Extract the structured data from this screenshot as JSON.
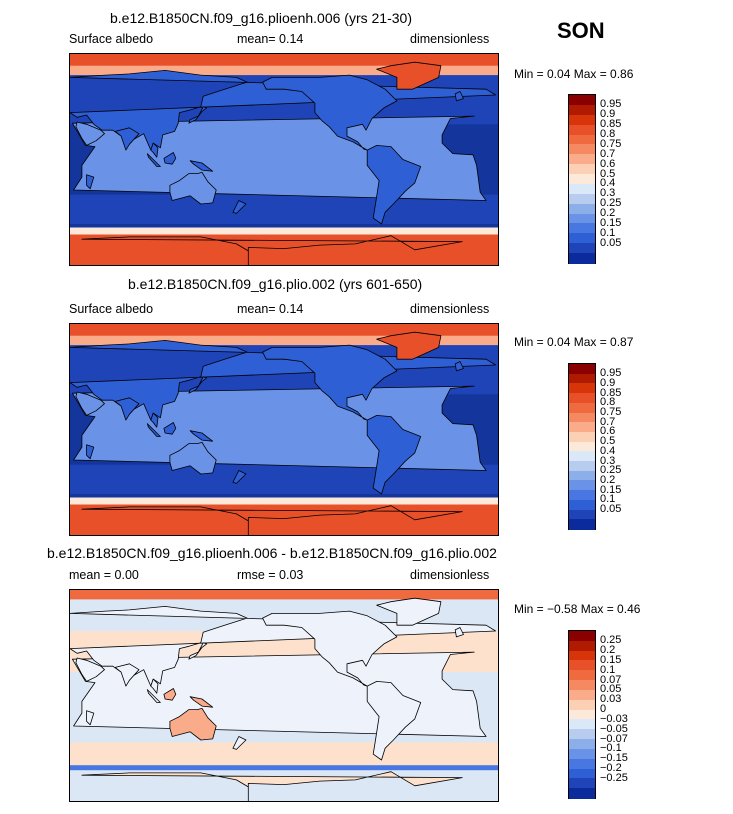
{
  "header": {
    "season": "SON"
  },
  "colors": {
    "ocean_blue": "#14359c",
    "land_blue": "#2f5fd4",
    "ice_red": "#e8502a",
    "diff_bg": "#dbe7f5",
    "diff_pos": "#fde1cc"
  },
  "panels": [
    {
      "title": "b.e12.B1850CN.f09_g16.plioenh.006 (yrs 21-30)",
      "left": "Surface albedo",
      "mean": "mean=   0.14",
      "units": "dimensionless",
      "minmax": "Min =   0.04  Max =   0.86",
      "levels": [
        "0.95",
        "0.9",
        "0.85",
        "0.8",
        "0.75",
        "0.7",
        "0.6",
        "0.5",
        "0.4",
        "0.3",
        "0.25",
        "0.2",
        "0.15",
        "0.1",
        "0.05"
      ],
      "colorbar": [
        "#8a0000",
        "#b01a00",
        "#d8340a",
        "#e8502a",
        "#f06a40",
        "#f58a62",
        "#f9ab8a",
        "#fcd0b4",
        "#fde9da",
        "#dbe8f7",
        "#b7ccef",
        "#8cafea",
        "#6a93e8",
        "#4977e2",
        "#2f5fd4",
        "#1e44b8",
        "#0b2a9b"
      ]
    },
    {
      "title": "b.e12.B1850CN.f09_g16.plio.002 (yrs 601-650)",
      "left": "Surface albedo",
      "mean": "mean=   0.14",
      "units": "dimensionless",
      "minmax": "Min =   0.04  Max =   0.87",
      "levels": [
        "0.95",
        "0.9",
        "0.85",
        "0.8",
        "0.75",
        "0.7",
        "0.6",
        "0.5",
        "0.4",
        "0.3",
        "0.25",
        "0.2",
        "0.15",
        "0.1",
        "0.05"
      ],
      "colorbar": [
        "#8a0000",
        "#b01a00",
        "#d8340a",
        "#e8502a",
        "#f06a40",
        "#f58a62",
        "#f9ab8a",
        "#fcd0b4",
        "#fde9da",
        "#dbe8f7",
        "#b7ccef",
        "#8cafea",
        "#6a93e8",
        "#4977e2",
        "#2f5fd4",
        "#1e44b8",
        "#0b2a9b"
      ]
    },
    {
      "title": "b.e12.B1850CN.f09_g16.plioenh.006 - b.e12.B1850CN.f09_g16.plio.002",
      "left": "mean =   0.00",
      "mean": "rmse =   0.03",
      "units": "dimensionless",
      "minmax": "Min =  −0.58  Max =   0.46",
      "levels": [
        "0.25",
        "0.2",
        "0.15",
        "0.1",
        "0.07",
        "0.05",
        "0.03",
        "0",
        "−0.03",
        "−0.05",
        "−0.07",
        "−0.1",
        "−0.15",
        "−0.2",
        "−0.25"
      ],
      "colorbar": [
        "#8a0000",
        "#b01a00",
        "#d8340a",
        "#e8502a",
        "#f06a40",
        "#f58a62",
        "#f9ab8a",
        "#fcd0b4",
        "#fde9da",
        "#dbe8f7",
        "#b7ccef",
        "#8cafea",
        "#6a93e8",
        "#4977e2",
        "#2f5fd4",
        "#1e44b8",
        "#0b2a9b"
      ]
    }
  ],
  "chart_data": [
    {
      "type": "heatmap",
      "title": "b.e12.B1850CN.f09_g16.plioenh.006 (yrs 21-30)",
      "variable": "Surface albedo",
      "units": "dimensionless",
      "mean": 0.14,
      "min": 0.04,
      "max": 0.86,
      "contour_levels": [
        0.05,
        0.1,
        0.15,
        0.2,
        0.25,
        0.3,
        0.4,
        0.5,
        0.6,
        0.7,
        0.75,
        0.8,
        0.85,
        0.9,
        0.95
      ]
    },
    {
      "type": "heatmap",
      "title": "b.e12.B1850CN.f09_g16.plio.002 (yrs 601-650)",
      "variable": "Surface albedo",
      "units": "dimensionless",
      "mean": 0.14,
      "min": 0.04,
      "max": 0.87,
      "contour_levels": [
        0.05,
        0.1,
        0.15,
        0.2,
        0.25,
        0.3,
        0.4,
        0.5,
        0.6,
        0.7,
        0.75,
        0.8,
        0.85,
        0.9,
        0.95
      ]
    },
    {
      "type": "heatmap",
      "title": "b.e12.B1850CN.f09_g16.plioenh.006 - b.e12.B1850CN.f09_g16.plio.002",
      "units": "dimensionless",
      "mean": 0.0,
      "rmse": 0.03,
      "min": -0.58,
      "max": 0.46,
      "contour_levels": [
        -0.25,
        -0.2,
        -0.15,
        -0.1,
        -0.07,
        -0.05,
        -0.03,
        0,
        0.03,
        0.05,
        0.07,
        0.1,
        0.15,
        0.2,
        0.25
      ]
    }
  ]
}
